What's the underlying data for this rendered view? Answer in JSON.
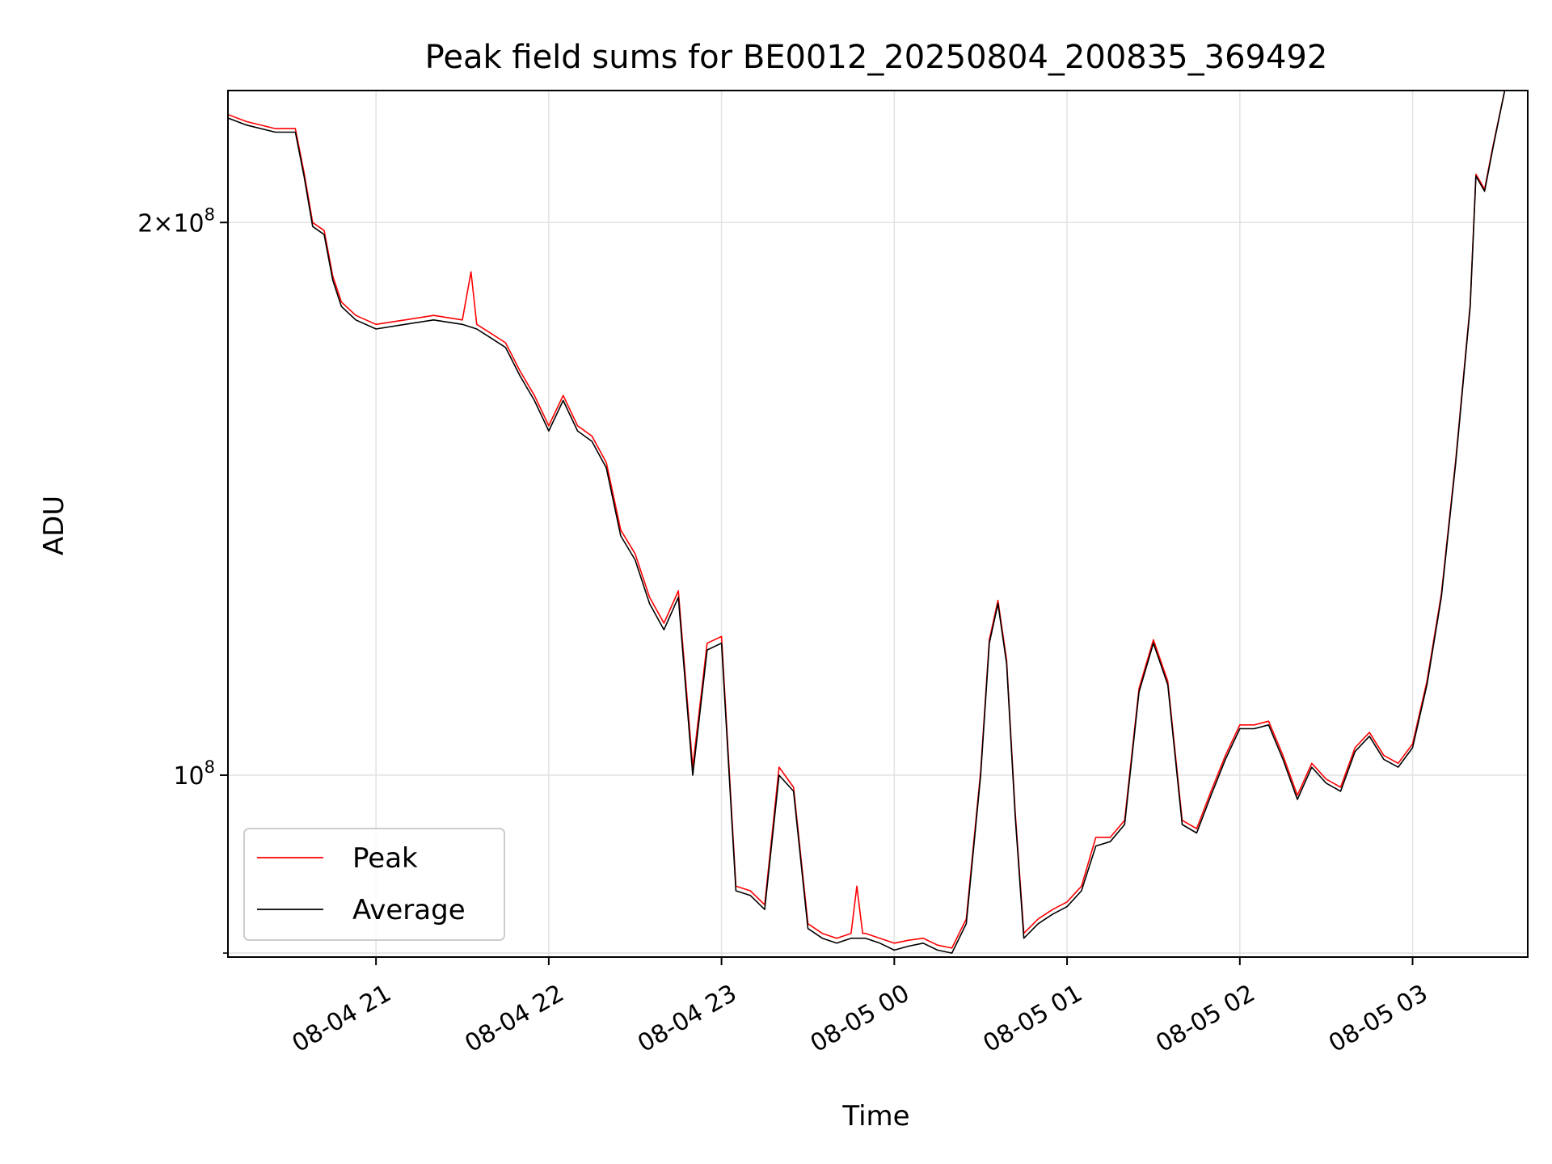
{
  "chart_data": {
    "type": "line",
    "title": "Peak field sums for BE0012_20250804_200835_369492",
    "xlabel": "Time",
    "ylabel": "ADU",
    "y_scale": "log",
    "grid": true,
    "legend_position": "lower-left",
    "xlim": [
      "2025-08-04 20:08:35",
      "2025-08-05 03:40:00"
    ],
    "ylim": [
      79600000,
      236000000
    ],
    "x_ticks": [
      {
        "at": "2025-08-04 21:00",
        "label": "08-04 21"
      },
      {
        "at": "2025-08-04 22:00",
        "label": "08-04 22"
      },
      {
        "at": "2025-08-04 23:00",
        "label": "08-04 23"
      },
      {
        "at": "2025-08-05 00:00",
        "label": "08-05 00"
      },
      {
        "at": "2025-08-05 01:00",
        "label": "08-05 01"
      },
      {
        "at": "2025-08-05 02:00",
        "label": "08-05 02"
      },
      {
        "at": "2025-08-05 03:00",
        "label": "08-05 03"
      }
    ],
    "y_major_ticks": [
      {
        "value": 100000000,
        "base": "10",
        "exp": "8",
        "mantissa": ""
      },
      {
        "value": 200000000,
        "base": "10",
        "exp": "8",
        "mantissa": "2×"
      }
    ],
    "y_minor_ticks": [
      80000000
    ],
    "series": [
      {
        "name": "Average",
        "color": "#000000",
        "points": [
          [
            "2025-08-04 20:08:35",
            228000000
          ],
          [
            "2025-08-04 20:15",
            226000000
          ],
          [
            "2025-08-04 20:25",
            224000000
          ],
          [
            "2025-08-04 20:32",
            224000000
          ],
          [
            "2025-08-04 20:35",
            212000000
          ],
          [
            "2025-08-04 20:38",
            199000000
          ],
          [
            "2025-08-04 20:42",
            197000000
          ],
          [
            "2025-08-04 20:45",
            186000000
          ],
          [
            "2025-08-04 20:48",
            180000000
          ],
          [
            "2025-08-04 20:53",
            177000000
          ],
          [
            "2025-08-04 21:00",
            175000000
          ],
          [
            "2025-08-04 21:10",
            176000000
          ],
          [
            "2025-08-04 21:20",
            177000000
          ],
          [
            "2025-08-04 21:30",
            176000000
          ],
          [
            "2025-08-04 21:35",
            175000000
          ],
          [
            "2025-08-04 21:40",
            173000000
          ],
          [
            "2025-08-04 21:45",
            171000000
          ],
          [
            "2025-08-04 21:50",
            165000000
          ],
          [
            "2025-08-04 21:55",
            160000000
          ],
          [
            "2025-08-04 22:00",
            154000000
          ],
          [
            "2025-08-04 22:05",
            160000000
          ],
          [
            "2025-08-04 22:10",
            154000000
          ],
          [
            "2025-08-04 22:15",
            152000000
          ],
          [
            "2025-08-04 22:20",
            147000000
          ],
          [
            "2025-08-04 22:25",
            135000000
          ],
          [
            "2025-08-04 22:30",
            131000000
          ],
          [
            "2025-08-04 22:35",
            124000000
          ],
          [
            "2025-08-04 22:40",
            120000000
          ],
          [
            "2025-08-04 22:45",
            125000000
          ],
          [
            "2025-08-04 22:50",
            100000000
          ],
          [
            "2025-08-04 22:55",
            117000000
          ],
          [
            "2025-08-04 23:00",
            118000000
          ],
          [
            "2025-08-04 23:05",
            86500000
          ],
          [
            "2025-08-04 23:10",
            86000000
          ],
          [
            "2025-08-04 23:15",
            84500000
          ],
          [
            "2025-08-04 23:20",
            100000000
          ],
          [
            "2025-08-04 23:25",
            98000000
          ],
          [
            "2025-08-04 23:30",
            82500000
          ],
          [
            "2025-08-04 23:35",
            81500000
          ],
          [
            "2025-08-04 23:40",
            81000000
          ],
          [
            "2025-08-04 23:45",
            81500000
          ],
          [
            "2025-08-04 23:50",
            81500000
          ],
          [
            "2025-08-04 23:55",
            81000000
          ],
          [
            "2025-08-05 00:00",
            80300000
          ],
          [
            "2025-08-05 00:05",
            80700000
          ],
          [
            "2025-08-05 00:10",
            81000000
          ],
          [
            "2025-08-05 00:15",
            80300000
          ],
          [
            "2025-08-05 00:20",
            80000000
          ],
          [
            "2025-08-05 00:25",
            83000000
          ],
          [
            "2025-08-05 00:30",
            100000000
          ],
          [
            "2025-08-05 00:33",
            118000000
          ],
          [
            "2025-08-05 00:36",
            124000000
          ],
          [
            "2025-08-05 00:39",
            115000000
          ],
          [
            "2025-08-05 00:42",
            95000000
          ],
          [
            "2025-08-05 00:45",
            81500000
          ],
          [
            "2025-08-05 00:50",
            83000000
          ],
          [
            "2025-08-05 00:55",
            84000000
          ],
          [
            "2025-08-05 01:00",
            84800000
          ],
          [
            "2025-08-05 01:05",
            86500000
          ],
          [
            "2025-08-05 01:10",
            91500000
          ],
          [
            "2025-08-05 01:15",
            92000000
          ],
          [
            "2025-08-05 01:20",
            94000000
          ],
          [
            "2025-08-05 01:25",
            111000000
          ],
          [
            "2025-08-05 01:30",
            118000000
          ],
          [
            "2025-08-05 01:35",
            112000000
          ],
          [
            "2025-08-05 01:40",
            94000000
          ],
          [
            "2025-08-05 01:45",
            93000000
          ],
          [
            "2025-08-05 01:50",
            97500000
          ],
          [
            "2025-08-05 01:55",
            102000000
          ],
          [
            "2025-08-05 02:00",
            106000000
          ],
          [
            "2025-08-05 02:05",
            106000000
          ],
          [
            "2025-08-05 02:10",
            106500000
          ],
          [
            "2025-08-05 02:15",
            102000000
          ],
          [
            "2025-08-05 02:20",
            97000000
          ],
          [
            "2025-08-05 02:25",
            101000000
          ],
          [
            "2025-08-05 02:30",
            99000000
          ],
          [
            "2025-08-05 02:35",
            98000000
          ],
          [
            "2025-08-05 02:40",
            103000000
          ],
          [
            "2025-08-05 02:45",
            105000000
          ],
          [
            "2025-08-05 02:50",
            102000000
          ],
          [
            "2025-08-05 02:55",
            101000000
          ],
          [
            "2025-08-05 03:00",
            103500000
          ],
          [
            "2025-08-05 03:05",
            112000000
          ],
          [
            "2025-08-05 03:10",
            125000000
          ],
          [
            "2025-08-05 03:15",
            148000000
          ],
          [
            "2025-08-05 03:20",
            180000000
          ],
          [
            "2025-08-05 03:22",
            212000000
          ],
          [
            "2025-08-05 03:25",
            208000000
          ],
          [
            "2025-08-05 03:28",
            220000000
          ],
          [
            "2025-08-05 03:32",
            236000000
          ]
        ]
      },
      {
        "name": "Peak",
        "color": "#ff0000",
        "points": [
          [
            "2025-08-04 20:08:35",
            229000000
          ],
          [
            "2025-08-04 20:15",
            227000000
          ],
          [
            "2025-08-04 20:25",
            225000000
          ],
          [
            "2025-08-04 20:32",
            225000000
          ],
          [
            "2025-08-04 20:35",
            213000000
          ],
          [
            "2025-08-04 20:38",
            200000000
          ],
          [
            "2025-08-04 20:42",
            198000000
          ],
          [
            "2025-08-04 20:45",
            187000000
          ],
          [
            "2025-08-04 20:48",
            181000000
          ],
          [
            "2025-08-04 20:53",
            178000000
          ],
          [
            "2025-08-04 21:00",
            176000000
          ],
          [
            "2025-08-04 21:10",
            177000000
          ],
          [
            "2025-08-04 21:20",
            178000000
          ],
          [
            "2025-08-04 21:30",
            177000000
          ],
          [
            "2025-08-04 21:33",
            188000000
          ],
          [
            "2025-08-04 21:35",
            176000000
          ],
          [
            "2025-08-04 21:40",
            174000000
          ],
          [
            "2025-08-04 21:45",
            172000000
          ],
          [
            "2025-08-04 21:50",
            166000000
          ],
          [
            "2025-08-04 21:55",
            161000000
          ],
          [
            "2025-08-04 22:00",
            155000000
          ],
          [
            "2025-08-04 22:05",
            161000000
          ],
          [
            "2025-08-04 22:10",
            155000000
          ],
          [
            "2025-08-04 22:15",
            153000000
          ],
          [
            "2025-08-04 22:20",
            148000000
          ],
          [
            "2025-08-04 22:25",
            136000000
          ],
          [
            "2025-08-04 22:30",
            132000000
          ],
          [
            "2025-08-04 22:35",
            125000000
          ],
          [
            "2025-08-04 22:40",
            121000000
          ],
          [
            "2025-08-04 22:45",
            126000000
          ],
          [
            "2025-08-04 22:50",
            101000000
          ],
          [
            "2025-08-04 22:55",
            118000000
          ],
          [
            "2025-08-04 23:00",
            119000000
          ],
          [
            "2025-08-04 23:05",
            87000000
          ],
          [
            "2025-08-04 23:10",
            86500000
          ],
          [
            "2025-08-04 23:15",
            85000000
          ],
          [
            "2025-08-04 23:20",
            101000000
          ],
          [
            "2025-08-04 23:25",
            98500000
          ],
          [
            "2025-08-04 23:30",
            83000000
          ],
          [
            "2025-08-04 23:35",
            82000000
          ],
          [
            "2025-08-04 23:40",
            81500000
          ],
          [
            "2025-08-04 23:45",
            82000000
          ],
          [
            "2025-08-04 23:47",
            87000000
          ],
          [
            "2025-08-04 23:49",
            82000000
          ],
          [
            "2025-08-04 23:50",
            82000000
          ],
          [
            "2025-08-04 23:55",
            81500000
          ],
          [
            "2025-08-05 00:00",
            81000000
          ],
          [
            "2025-08-05 00:05",
            81300000
          ],
          [
            "2025-08-05 00:10",
            81500000
          ],
          [
            "2025-08-05 00:15",
            80800000
          ],
          [
            "2025-08-05 00:20",
            80500000
          ],
          [
            "2025-08-05 00:25",
            83500000
          ],
          [
            "2025-08-05 00:30",
            100500000
          ],
          [
            "2025-08-05 00:33",
            118500000
          ],
          [
            "2025-08-05 00:36",
            124500000
          ],
          [
            "2025-08-05 00:39",
            115500000
          ],
          [
            "2025-08-05 00:42",
            95500000
          ],
          [
            "2025-08-05 00:45",
            82000000
          ],
          [
            "2025-08-05 00:50",
            83500000
          ],
          [
            "2025-08-05 00:55",
            84500000
          ],
          [
            "2025-08-05 01:00",
            85300000
          ],
          [
            "2025-08-05 01:05",
            87000000
          ],
          [
            "2025-08-05 01:10",
            92500000
          ],
          [
            "2025-08-05 01:15",
            92500000
          ],
          [
            "2025-08-05 01:20",
            94500000
          ],
          [
            "2025-08-05 01:25",
            111500000
          ],
          [
            "2025-08-05 01:30",
            118500000
          ],
          [
            "2025-08-05 01:35",
            112500000
          ],
          [
            "2025-08-05 01:40",
            94500000
          ],
          [
            "2025-08-05 01:45",
            93500000
          ],
          [
            "2025-08-05 01:50",
            98000000
          ],
          [
            "2025-08-05 01:55",
            102500000
          ],
          [
            "2025-08-05 02:00",
            106500000
          ],
          [
            "2025-08-05 02:05",
            106500000
          ],
          [
            "2025-08-05 02:10",
            107000000
          ],
          [
            "2025-08-05 02:15",
            102500000
          ],
          [
            "2025-08-05 02:20",
            97500000
          ],
          [
            "2025-08-05 02:25",
            101500000
          ],
          [
            "2025-08-05 02:30",
            99500000
          ],
          [
            "2025-08-05 02:35",
            98500000
          ],
          [
            "2025-08-05 02:40",
            103500000
          ],
          [
            "2025-08-05 02:45",
            105500000
          ],
          [
            "2025-08-05 02:50",
            102500000
          ],
          [
            "2025-08-05 02:55",
            101500000
          ],
          [
            "2025-08-05 03:00",
            104000000
          ],
          [
            "2025-08-05 03:05",
            112500000
          ],
          [
            "2025-08-05 03:10",
            125500000
          ],
          [
            "2025-08-05 03:15",
            148500000
          ],
          [
            "2025-08-05 03:20",
            180500000
          ],
          [
            "2025-08-05 03:22",
            212500000
          ],
          [
            "2025-08-05 03:25",
            208500000
          ],
          [
            "2025-08-05 03:28",
            220500000
          ],
          [
            "2025-08-05 03:32",
            236000000
          ]
        ]
      }
    ],
    "legend": [
      {
        "label": "Peak",
        "color": "#ff0000"
      },
      {
        "label": "Average",
        "color": "#000000"
      }
    ]
  }
}
